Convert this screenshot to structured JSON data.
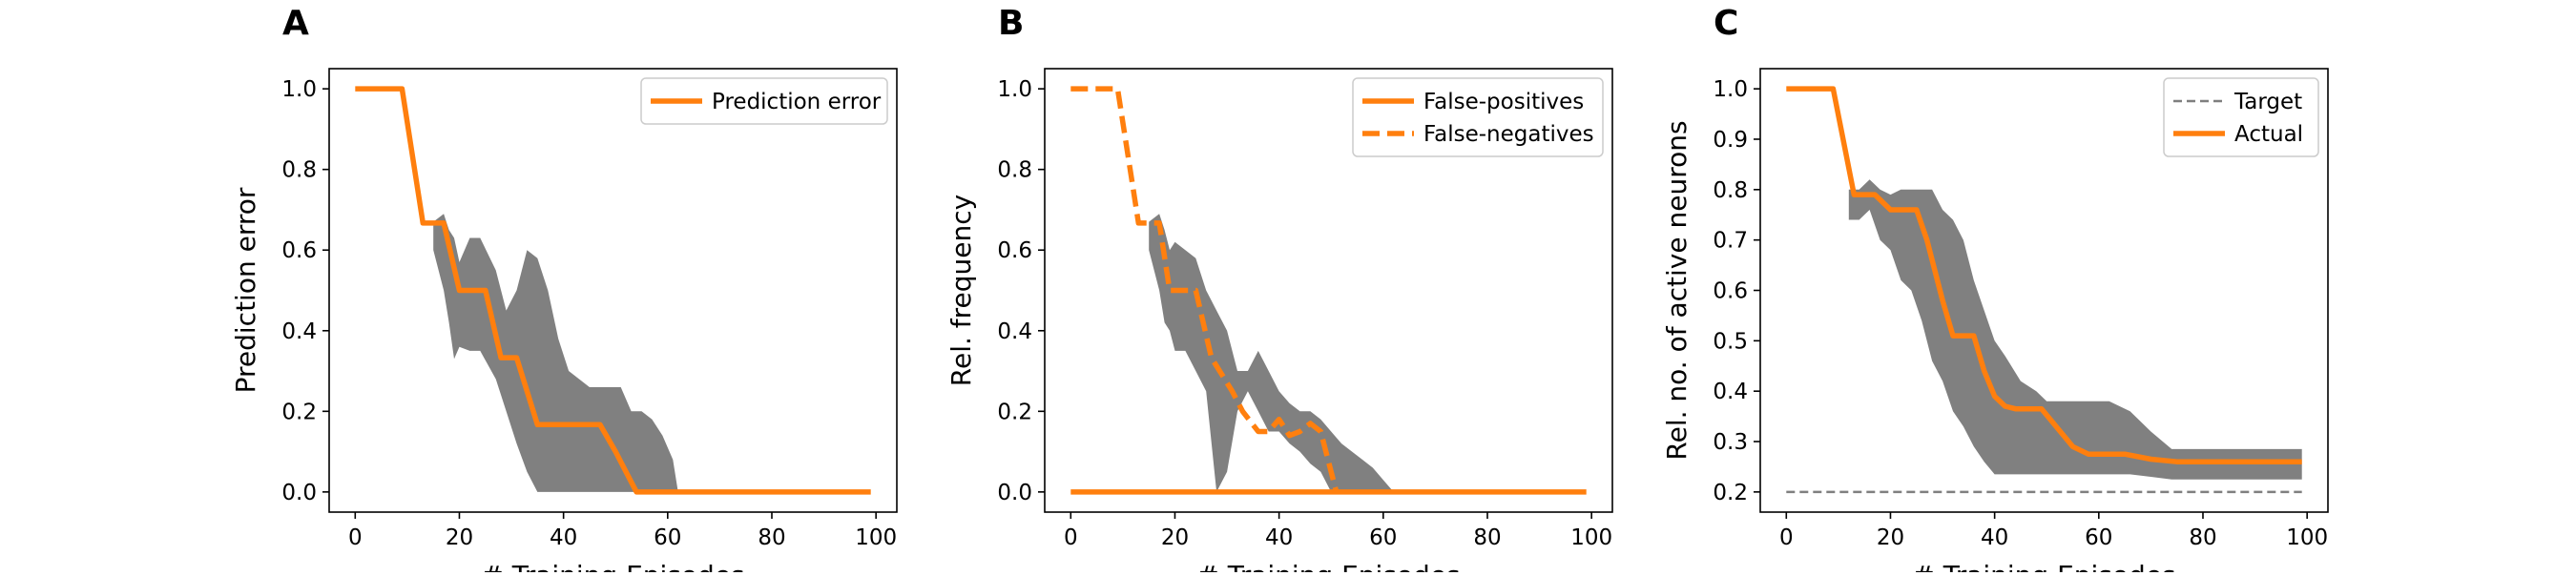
{
  "figure": {
    "panels": [
      {
        "id": "A",
        "letter": "A"
      },
      {
        "id": "B",
        "letter": "B"
      },
      {
        "id": "C",
        "letter": "C"
      }
    ]
  },
  "colors": {
    "orange": "#ff7f0e",
    "band": "#808080",
    "target": "#7f7f7f",
    "axes": "#000000",
    "legend_border": "#cccccc"
  },
  "chart_data": [
    {
      "panel": "A",
      "type": "line",
      "xlabel": "# Training Episodes",
      "ylabel": "Prediction error",
      "xlim": [
        -5,
        104
      ],
      "ylim": [
        -0.05,
        1.05
      ],
      "xticks": [
        0,
        20,
        40,
        60,
        80,
        100
      ],
      "yticks": [
        0.0,
        0.2,
        0.4,
        0.6,
        0.8,
        1.0
      ],
      "ytick_decimals": 1,
      "legend": {
        "position": "upper right"
      },
      "series": [
        {
          "name": "Prediction error",
          "style": "solid",
          "color": "#ff7f0e",
          "x": [
            0,
            9,
            13,
            17,
            20,
            25,
            28,
            31,
            33,
            35,
            47,
            50,
            52,
            54,
            99
          ],
          "y": [
            1.0,
            1.0,
            0.667,
            0.667,
            0.5,
            0.5,
            0.333,
            0.333,
            0.25,
            0.167,
            0.167,
            0.1,
            0.05,
            0.0,
            0.0
          ]
        }
      ],
      "bands": [
        {
          "x": [
            15,
            17,
            18,
            19,
            20,
            22,
            24,
            27,
            29,
            31,
            33,
            35,
            37,
            39,
            41,
            43,
            45,
            47,
            49,
            51,
            53,
            55,
            57,
            59,
            61,
            62
          ],
          "lower": [
            0.6,
            0.5,
            0.42,
            0.33,
            0.36,
            0.35,
            0.35,
            0.28,
            0.2,
            0.12,
            0.05,
            0.0,
            0.0,
            0.0,
            0.0,
            0.0,
            0.0,
            0.0,
            0.0,
            0.0,
            0.0,
            0.0,
            0.0,
            0.0,
            0.0,
            0.0
          ],
          "upper": [
            0.67,
            0.69,
            0.65,
            0.63,
            0.57,
            0.63,
            0.63,
            0.55,
            0.45,
            0.5,
            0.6,
            0.58,
            0.5,
            0.38,
            0.3,
            0.28,
            0.26,
            0.26,
            0.26,
            0.26,
            0.2,
            0.2,
            0.18,
            0.14,
            0.08,
            0.0
          ]
        }
      ]
    },
    {
      "panel": "B",
      "type": "line",
      "xlabel": "# Training Episodes",
      "ylabel": "Rel. frequency",
      "xlim": [
        -5,
        104
      ],
      "ylim": [
        -0.05,
        1.05
      ],
      "xticks": [
        0,
        20,
        40,
        60,
        80,
        100
      ],
      "yticks": [
        0.0,
        0.2,
        0.4,
        0.6,
        0.8,
        1.0
      ],
      "ytick_decimals": 1,
      "legend": {
        "position": "upper right"
      },
      "series": [
        {
          "name": "False-positives",
          "style": "solid",
          "color": "#ff7f0e",
          "x": [
            0,
            99
          ],
          "y": [
            0.0,
            0.0
          ]
        },
        {
          "name": "False-negatives",
          "style": "dashed",
          "color": "#ff7f0e",
          "x": [
            0,
            9,
            13,
            17,
            19,
            24,
            27,
            31,
            33,
            36,
            38,
            40,
            42,
            44,
            46,
            48,
            50,
            51
          ],
          "y": [
            1.0,
            1.0,
            0.667,
            0.667,
            0.5,
            0.5,
            0.333,
            0.25,
            0.2,
            0.15,
            0.15,
            0.18,
            0.14,
            0.15,
            0.17,
            0.15,
            0.05,
            0.0
          ]
        }
      ],
      "bands": [
        {
          "x": [
            15,
            17,
            18,
            19,
            20,
            22,
            24,
            26,
            28,
            30,
            32,
            34,
            36,
            38,
            40,
            42,
            44,
            46,
            48,
            50,
            52,
            54,
            56,
            58,
            60,
            62
          ],
          "lower": [
            0.6,
            0.5,
            0.42,
            0.4,
            0.35,
            0.35,
            0.3,
            0.25,
            0.0,
            0.05,
            0.2,
            0.25,
            0.2,
            0.15,
            0.15,
            0.12,
            0.1,
            0.07,
            0.05,
            0.0,
            0.0,
            0.0,
            0.0,
            0.0,
            0.0,
            0.0
          ],
          "upper": [
            0.67,
            0.69,
            0.65,
            0.6,
            0.62,
            0.6,
            0.58,
            0.5,
            0.45,
            0.4,
            0.3,
            0.3,
            0.35,
            0.3,
            0.25,
            0.22,
            0.2,
            0.2,
            0.18,
            0.15,
            0.12,
            0.1,
            0.08,
            0.06,
            0.03,
            0.0
          ]
        }
      ]
    },
    {
      "panel": "C",
      "type": "line",
      "xlabel": "# Training Episodes",
      "ylabel": "Rel. no. of active neurons",
      "xlim": [
        -5,
        104
      ],
      "ylim": [
        0.16,
        1.04
      ],
      "xticks": [
        0,
        20,
        40,
        60,
        80,
        100
      ],
      "yticks": [
        0.2,
        0.3,
        0.4,
        0.5,
        0.6,
        0.7,
        0.8,
        0.9,
        1.0
      ],
      "ytick_decimals": 1,
      "legend": {
        "position": "upper right"
      },
      "series": [
        {
          "name": "Target",
          "style": "thin-dashed",
          "color": "#7f7f7f",
          "x": [
            0,
            99
          ],
          "y": [
            0.2,
            0.2
          ]
        },
        {
          "name": "Actual",
          "style": "solid",
          "color": "#ff7f0e",
          "x": [
            0,
            9,
            13,
            17,
            20,
            25,
            27,
            30,
            32,
            36,
            38,
            40,
            42,
            44,
            49,
            51,
            55,
            58,
            65,
            70,
            75,
            99
          ],
          "y": [
            1.0,
            1.0,
            0.79,
            0.79,
            0.76,
            0.76,
            0.7,
            0.58,
            0.51,
            0.51,
            0.44,
            0.39,
            0.37,
            0.365,
            0.365,
            0.34,
            0.29,
            0.275,
            0.275,
            0.265,
            0.26,
            0.26
          ]
        }
      ],
      "bands": [
        {
          "x": [
            12,
            14,
            16,
            18,
            20,
            22,
            24,
            26,
            28,
            30,
            32,
            34,
            36,
            38,
            40,
            42,
            45,
            48,
            50,
            54,
            58,
            62,
            66,
            70,
            74,
            78,
            99
          ],
          "lower": [
            0.74,
            0.74,
            0.76,
            0.7,
            0.68,
            0.62,
            0.6,
            0.54,
            0.46,
            0.42,
            0.36,
            0.33,
            0.29,
            0.26,
            0.235,
            0.235,
            0.235,
            0.235,
            0.235,
            0.235,
            0.235,
            0.235,
            0.235,
            0.23,
            0.225,
            0.225,
            0.225
          ],
          "upper": [
            0.8,
            0.8,
            0.82,
            0.8,
            0.79,
            0.8,
            0.8,
            0.8,
            0.8,
            0.76,
            0.74,
            0.7,
            0.62,
            0.56,
            0.5,
            0.47,
            0.42,
            0.4,
            0.38,
            0.38,
            0.38,
            0.38,
            0.36,
            0.32,
            0.285,
            0.285,
            0.285
          ]
        }
      ]
    }
  ]
}
